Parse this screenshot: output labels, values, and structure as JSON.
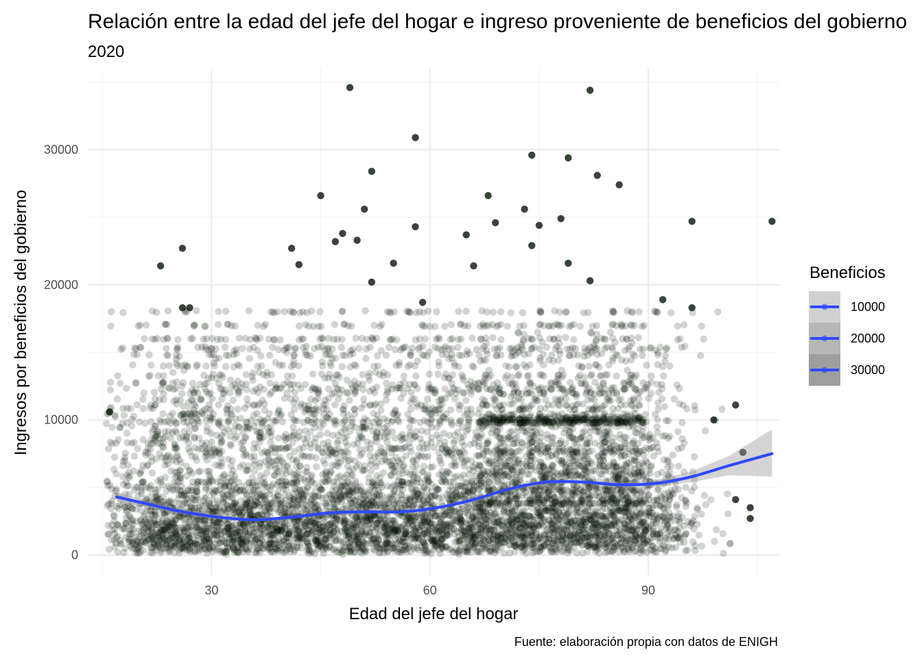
{
  "chart_data": {
    "type": "scatter",
    "title": "Relación entre la edad del jefe del hogar e ingreso proveniente de beneficios del gobierno",
    "subtitle": "2020",
    "xlabel": "Edad del jefe del hogar",
    "ylabel": "Ingresos por beneficios del gobierno",
    "caption": "Fuente: elaboración propia con datos de ENIGH",
    "xlim": [
      13,
      108
    ],
    "ylim": [
      -1500,
      36000
    ],
    "x_ticks": [
      30,
      60,
      90
    ],
    "y_ticks": [
      0,
      10000,
      20000,
      30000
    ],
    "grid": true,
    "point_color": "#001000",
    "smooth_color": "#3049ff",
    "ribbon_color": "#999999",
    "legend": {
      "title": "Beneficios",
      "position": "right",
      "entries": [
        {
          "label": "10000",
          "alpha": 0.45
        },
        {
          "label": "20000",
          "alpha": 0.7
        },
        {
          "label": "30000",
          "alpha": 0.95
        }
      ]
    },
    "outliers": [
      {
        "x": 49,
        "y": 34600
      },
      {
        "x": 82,
        "y": 34400
      },
      {
        "x": 58,
        "y": 30900
      },
      {
        "x": 74,
        "y": 29600
      },
      {
        "x": 79,
        "y": 29400
      },
      {
        "x": 52,
        "y": 28400
      },
      {
        "x": 83,
        "y": 28100
      },
      {
        "x": 86,
        "y": 27400
      },
      {
        "x": 45,
        "y": 26600
      },
      {
        "x": 68,
        "y": 26600
      },
      {
        "x": 51,
        "y": 25600
      },
      {
        "x": 73,
        "y": 25600
      },
      {
        "x": 78,
        "y": 24900
      },
      {
        "x": 96,
        "y": 24700
      },
      {
        "x": 107,
        "y": 24700
      },
      {
        "x": 69,
        "y": 24600
      },
      {
        "x": 75,
        "y": 24400
      },
      {
        "x": 58,
        "y": 24300
      },
      {
        "x": 48,
        "y": 23800
      },
      {
        "x": 65,
        "y": 23700
      },
      {
        "x": 50,
        "y": 23300
      },
      {
        "x": 47,
        "y": 23200
      },
      {
        "x": 41,
        "y": 22700
      },
      {
        "x": 26,
        "y": 22700
      },
      {
        "x": 74,
        "y": 22900
      },
      {
        "x": 23,
        "y": 21400
      },
      {
        "x": 42,
        "y": 21500
      },
      {
        "x": 55,
        "y": 21600
      },
      {
        "x": 79,
        "y": 21600
      },
      {
        "x": 66,
        "y": 21400
      },
      {
        "x": 52,
        "y": 20200
      },
      {
        "x": 82,
        "y": 20300
      },
      {
        "x": 59,
        "y": 18700
      },
      {
        "x": 92,
        "y": 18900
      },
      {
        "x": 96,
        "y": 18300
      },
      {
        "x": 26,
        "y": 18300
      },
      {
        "x": 27,
        "y": 18300
      },
      {
        "x": 102,
        "y": 11100
      },
      {
        "x": 99,
        "y": 10000
      },
      {
        "x": 16,
        "y": 10600
      },
      {
        "x": 104,
        "y": 3500
      },
      {
        "x": 104,
        "y": 2700
      },
      {
        "x": 102,
        "y": 4100
      },
      {
        "x": 103,
        "y": 7600
      }
    ],
    "smooth_line": {
      "x": [
        17,
        21,
        26,
        31,
        36,
        41,
        46,
        51,
        56,
        61,
        66,
        71,
        76,
        81,
        86,
        91,
        96,
        101,
        107
      ],
      "y": [
        4300,
        3800,
        3200,
        2800,
        2600,
        2800,
        3100,
        3200,
        3200,
        3500,
        4100,
        4900,
        5400,
        5400,
        5200,
        5300,
        5800,
        6600,
        7500
      ]
    },
    "ribbon_upper": [
      4650,
      4050,
      3400,
      2950,
      2720,
      2920,
      3200,
      3300,
      3300,
      3600,
      4200,
      5000,
      5520,
      5520,
      5360,
      5520,
      6200,
      7300,
      9300
    ],
    "ribbon_lower": [
      3950,
      3550,
      3000,
      2650,
      2480,
      2680,
      3000,
      3100,
      3100,
      3400,
      4000,
      4800,
      5280,
      5280,
      5040,
      5080,
      5400,
      5900,
      5800
    ]
  }
}
